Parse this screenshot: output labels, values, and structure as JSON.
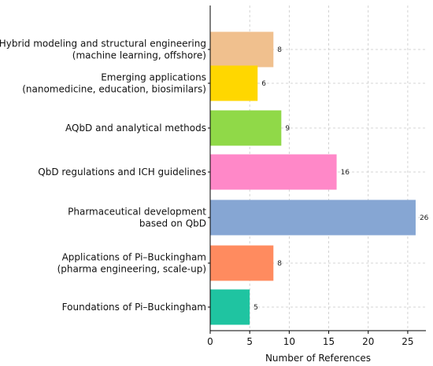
{
  "chart_data": {
    "type": "bar",
    "orientation": "horizontal",
    "categories": [
      "Hybrid modeling and structural engineering\n(machine learning, offshore)",
      "Emerging applications\n(nanomedicine, education, biosimilars)",
      "AQbD and analytical methods",
      "QbD regulations and ICH guidelines",
      "Pharmaceutical development\nbased on QbD",
      "Applications of Pi–Buckingham\n(pharma engineering, scale-up)",
      "Foundations of Pi–Buckingham"
    ],
    "values": [
      8,
      6,
      9,
      16,
      26,
      8,
      5
    ],
    "colors": [
      "#F0C08E",
      "#FFD700",
      "#90D948",
      "#FF88C8",
      "#86A6D3",
      "#FF8B5F",
      "#1FC4A1"
    ],
    "xlabel": "Number of References",
    "ylabel": "",
    "xlim": [
      0,
      27.3
    ],
    "xticks": [
      0,
      5,
      10,
      15,
      20,
      25
    ],
    "grid": true
  }
}
